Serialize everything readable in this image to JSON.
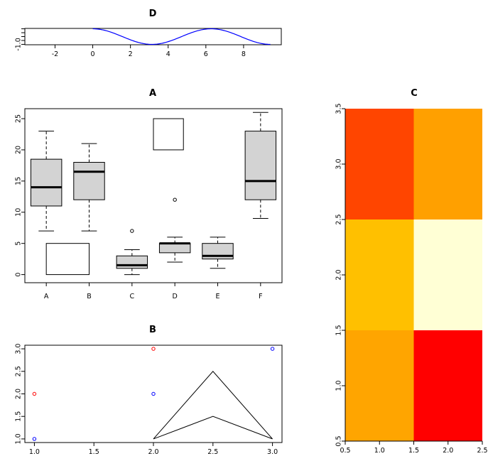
{
  "chart_data": [
    {
      "panel": "D",
      "type": "line",
      "title": "D",
      "function_shown": "cos(x)",
      "x_range": [
        0,
        9.42
      ],
      "xlim": [
        -3.6,
        10
      ],
      "ylim": [
        -1.05,
        1.05
      ],
      "x_ticks": [
        -2,
        0,
        2,
        4,
        6,
        8
      ],
      "y_ticks": [
        -1.0
      ],
      "line_color": "#0000ff"
    },
    {
      "panel": "A",
      "type": "box",
      "title": "A",
      "categories": [
        "A",
        "B",
        "C",
        "D",
        "E",
        "F"
      ],
      "y_ticks": [
        0,
        5,
        10,
        15,
        20,
        25
      ],
      "ylim": [
        -1.3,
        26.6
      ],
      "boxes": [
        {
          "name": "A",
          "low": 7,
          "q1": 11,
          "median": 14,
          "q3": 18.5,
          "high": 23,
          "outliers": []
        },
        {
          "name": "B",
          "low": 7,
          "q1": 12,
          "median": 16.5,
          "q3": 18,
          "high": 21,
          "outliers": []
        },
        {
          "name": "C",
          "low": 0,
          "q1": 1,
          "median": 1.5,
          "q3": 3,
          "high": 4,
          "outliers": [
            7
          ]
        },
        {
          "name": "D",
          "low": 2,
          "q1": 3.5,
          "median": 5,
          "q3": 5,
          "high": 6,
          "outliers": [
            12
          ]
        },
        {
          "name": "E",
          "low": 1,
          "q1": 2.5,
          "median": 3,
          "q3": 5,
          "high": 6,
          "outliers": []
        },
        {
          "name": "F",
          "low": 9,
          "q1": 12,
          "median": 15,
          "q3": 23,
          "high": 26,
          "outliers": []
        }
      ],
      "rects": [
        {
          "x0": 1,
          "x1": 2,
          "y0": 0,
          "y1": 5
        },
        {
          "x0": 3.5,
          "x1": 4.2,
          "y0": 20,
          "y1": 25
        }
      ],
      "box_fill": "#d3d3d3"
    },
    {
      "panel": "B",
      "type": "scatter",
      "title": "B",
      "xlim": [
        0.92,
        3.08
      ],
      "ylim": [
        0.92,
        3.08
      ],
      "x_ticks": [
        1.0,
        1.5,
        2.0,
        2.5,
        3.0
      ],
      "y_ticks": [
        1.0,
        1.5,
        2.0,
        2.5,
        3.0
      ],
      "series": [
        {
          "color": "#ff0000",
          "x": [
            1,
            2
          ],
          "y": [
            2,
            3
          ]
        },
        {
          "color": "#0000ff",
          "x": [
            1,
            2,
            3
          ],
          "y": [
            1,
            2,
            3
          ]
        }
      ],
      "polygon": [
        [
          2,
          1
        ],
        [
          2.5,
          2.5
        ],
        [
          3,
          1
        ],
        [
          2.5,
          1.5
        ]
      ]
    },
    {
      "panel": "C",
      "type": "heatmap",
      "title": "C",
      "xlim": [
        0.5,
        2.5
      ],
      "ylim": [
        0.5,
        3.5
      ],
      "x_ticks": [
        0.5,
        1.0,
        1.5,
        2.0,
        2.5
      ],
      "y_ticks": [
        0.5,
        1.0,
        1.5,
        2.0,
        2.5,
        3.0,
        3.5
      ],
      "cells": [
        {
          "x": 1,
          "y": 1,
          "color": "#ffa500"
        },
        {
          "x": 2,
          "y": 1,
          "color": "#ff0000"
        },
        {
          "x": 1,
          "y": 2,
          "color": "#ffc000"
        },
        {
          "x": 2,
          "y": 2,
          "color": "#ffffd5"
        },
        {
          "x": 1,
          "y": 3,
          "color": "#ff4500"
        },
        {
          "x": 2,
          "y": 3,
          "color": "#ffa000"
        }
      ]
    }
  ]
}
